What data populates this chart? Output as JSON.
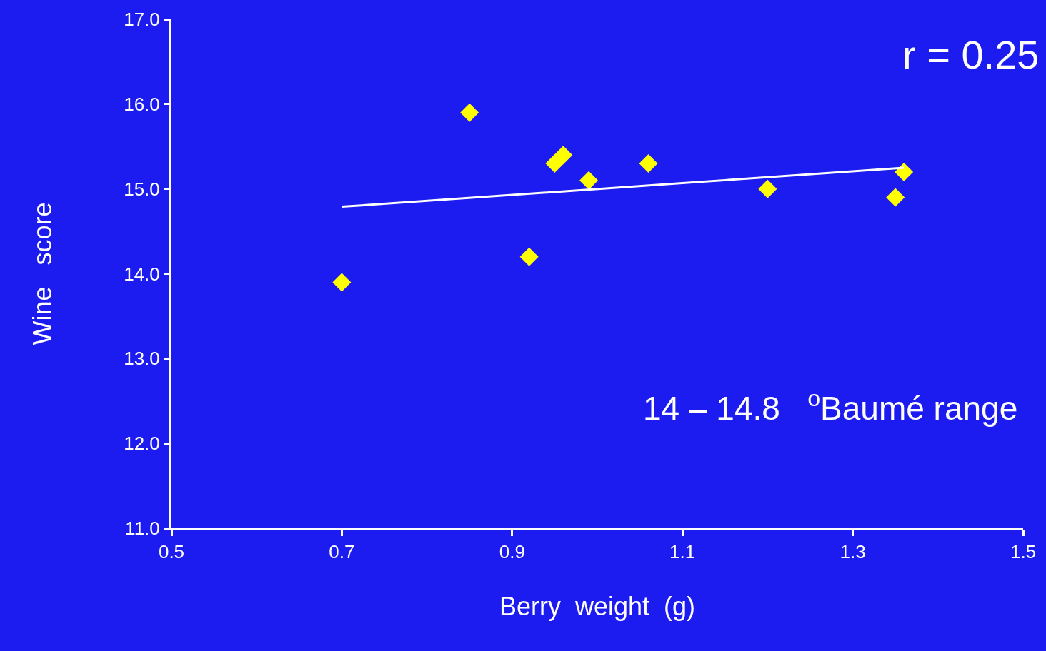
{
  "chart_data": {
    "type": "scatter",
    "xlabel": "Berry  weight  (g)",
    "ylabel": "Wine   score",
    "marker": "diamond",
    "xlim": [
      0.5,
      1.5
    ],
    "xticks": [
      0.5,
      0.7,
      0.9,
      1.1,
      1.3,
      1.5
    ],
    "ylim": [
      11,
      17
    ],
    "yticks": [
      {
        "value": 11,
        "label": "11.0"
      },
      {
        "value": 12,
        "label": "12.0"
      },
      {
        "value": 13,
        "label": "13.0"
      },
      {
        "value": 14,
        "label": "14.0"
      },
      {
        "value": 15,
        "label": "15.0"
      },
      {
        "value": 16,
        "label": "16.0"
      },
      {
        "value": 17,
        "label": "17.0"
      }
    ],
    "annotations": [
      "r = 0.25",
      "14 – 14.8   $^{o}$Baumé range"
    ],
    "series": [
      {
        "color": "#ffff00",
        "x": [
          0.7,
          0.85,
          0.92,
          0.95,
          0.96,
          0.99,
          1.06,
          1.2,
          1.35,
          1.36
        ],
        "values": [
          13.9,
          15.9,
          14.2,
          15.3,
          15.4,
          15.1,
          15.3,
          15.0,
          14.9,
          15.2
        ]
      },
      {
        "type": "line",
        "color": "#ffffff",
        "marker": "none",
        "x": [
          0.7,
          1.36
        ],
        "values": [
          14.79,
          15.25
        ]
      }
    ]
  }
}
